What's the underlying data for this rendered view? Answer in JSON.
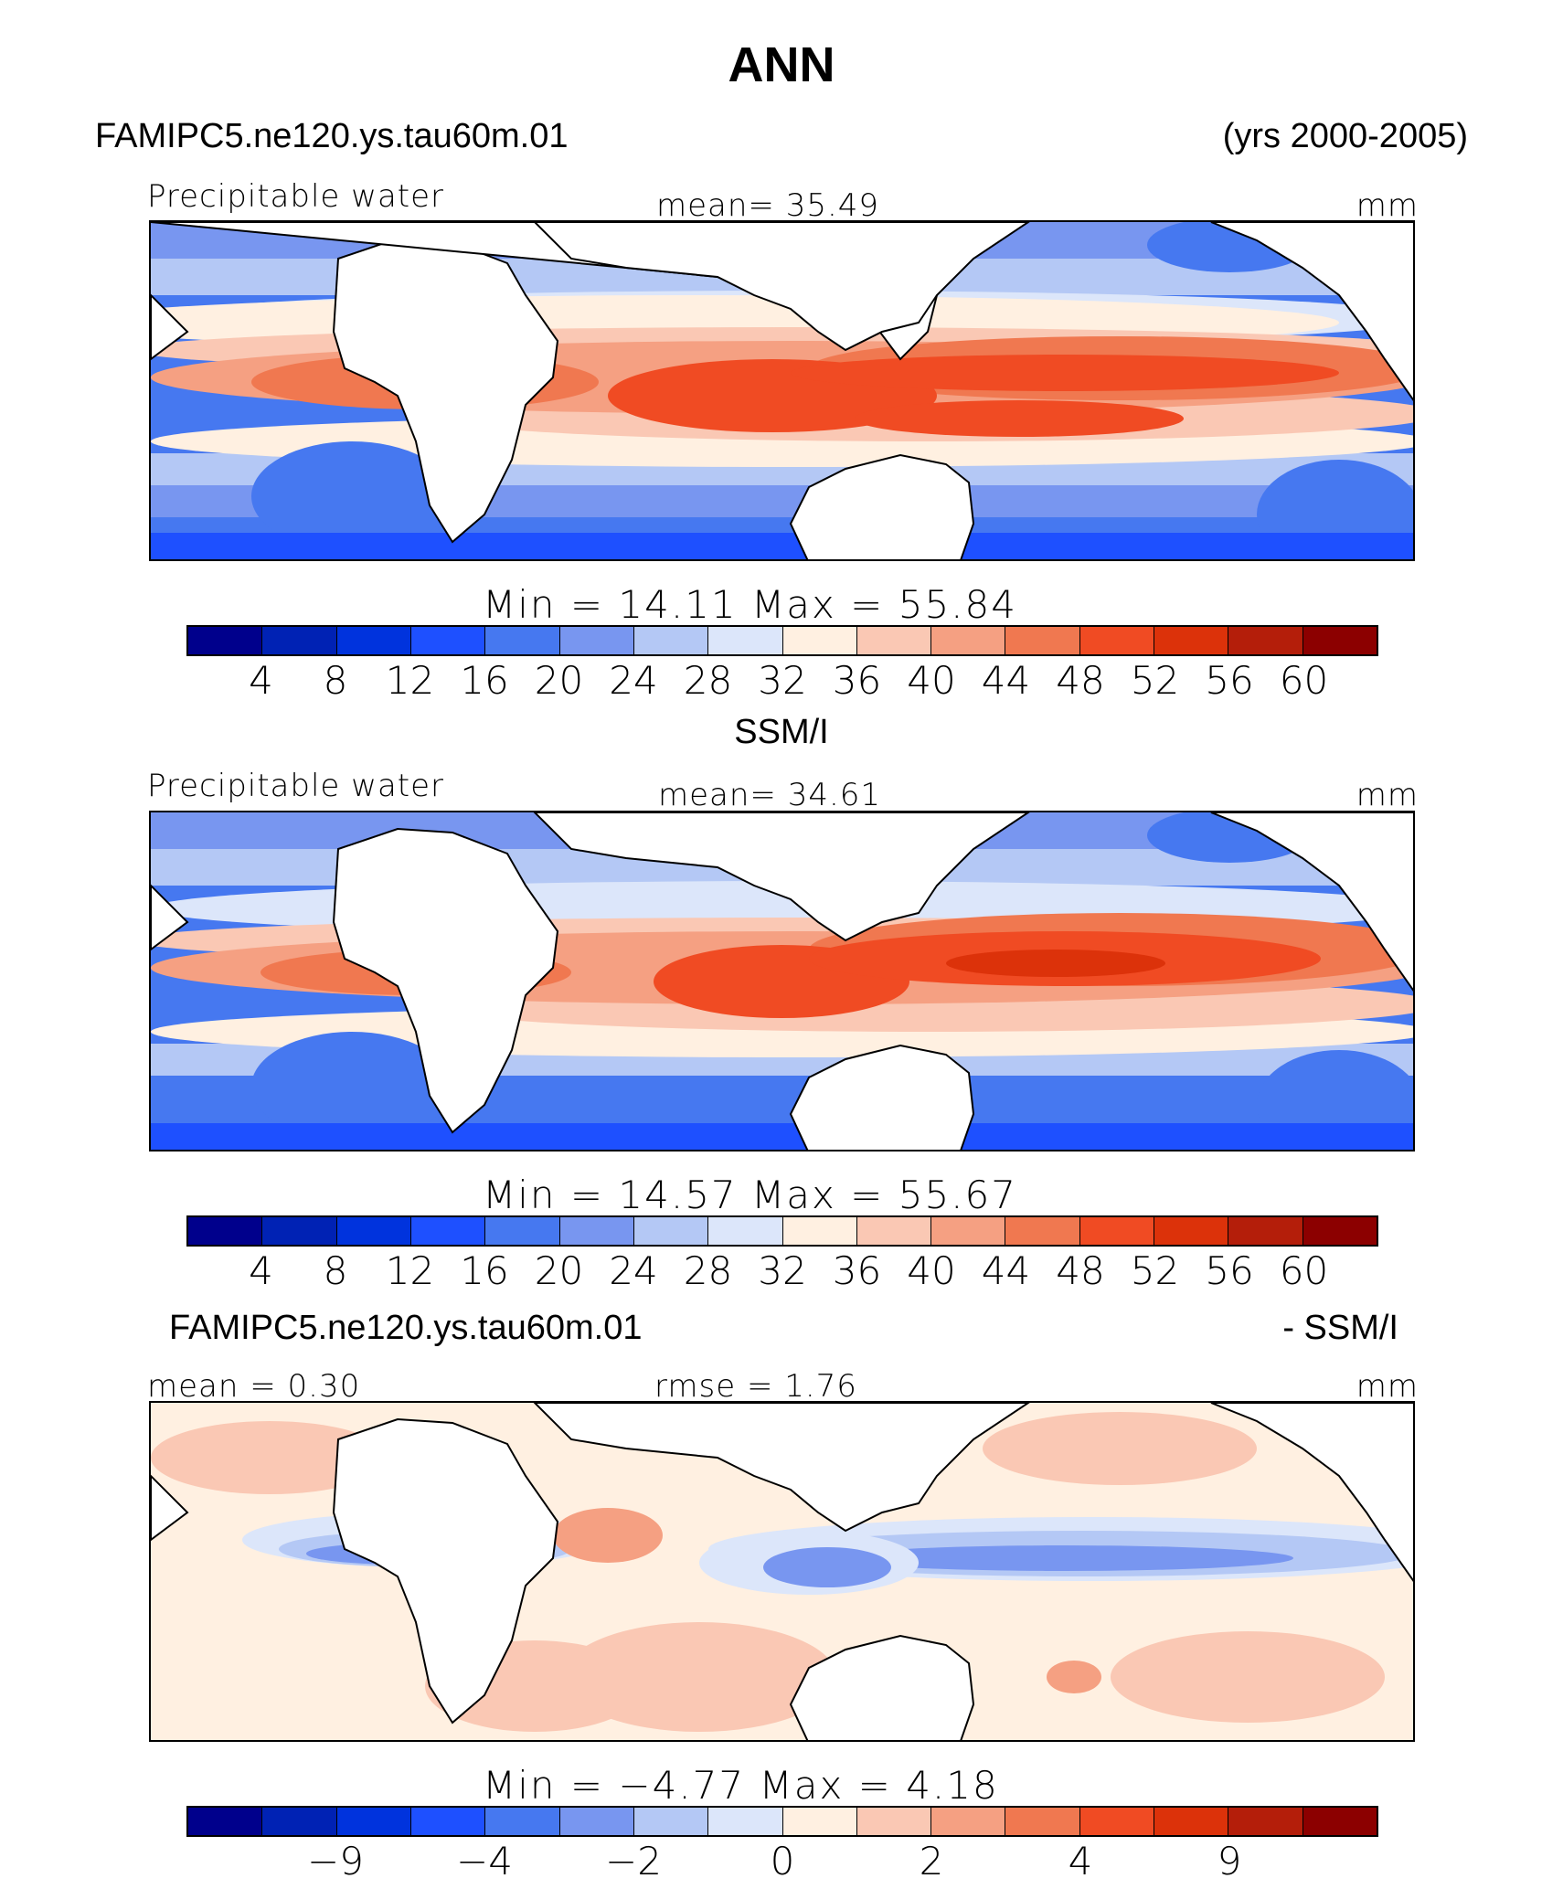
{
  "figure_title": "ANN",
  "header": {
    "case": "FAMIPC5.ne120.ys.tau60m.01",
    "years": "(yrs 2000-2005)"
  },
  "palette": [
    "#00008c",
    "#0022b4",
    "#0033dd",
    "#1e50ff",
    "#4678f0",
    "#7896f0",
    "#b4c8f5",
    "#dce6fa",
    "#fff0e1",
    "#fac8b4",
    "#f5a082",
    "#f07850",
    "#f04b23",
    "#dc320a",
    "#b41e0a",
    "#8c0000"
  ],
  "land_color": "#ffffff",
  "panels": [
    {
      "panel_title": "",
      "variable": "Precipitable water",
      "stat_text": "mean=   35.49",
      "units": "mm",
      "minmax": "Min  =   14.11  Max  =   55.84",
      "colorbar_ticks": [
        "4",
        "8",
        "12",
        "16",
        "20",
        "24",
        "28",
        "32",
        "36",
        "40",
        "44",
        "48",
        "52",
        "56",
        "60"
      ]
    },
    {
      "panel_title": "SSM/I",
      "variable": "Precipitable water",
      "stat_text": "mean=   34.61",
      "units": "mm",
      "minmax": "Min  =   14.57  Max  =   55.67",
      "colorbar_ticks": [
        "4",
        "8",
        "12",
        "16",
        "20",
        "24",
        "28",
        "32",
        "36",
        "40",
        "44",
        "48",
        "52",
        "56",
        "60"
      ]
    },
    {
      "panel_title_left": "FAMIPC5.ne120.ys.tau60m.01",
      "panel_title_right": "- SSM/I",
      "mean_text": "mean =     0.30",
      "rmse_text": "rmse =     1.76",
      "units": "mm",
      "minmax": "Min  =   −4.77  Max  =     4.18",
      "colorbar_ticks": [
        "−9",
        "",
        "−4",
        "",
        "−2",
        "",
        "0",
        "",
        "2",
        "",
        "4",
        "",
        "9"
      ]
    }
  ]
}
